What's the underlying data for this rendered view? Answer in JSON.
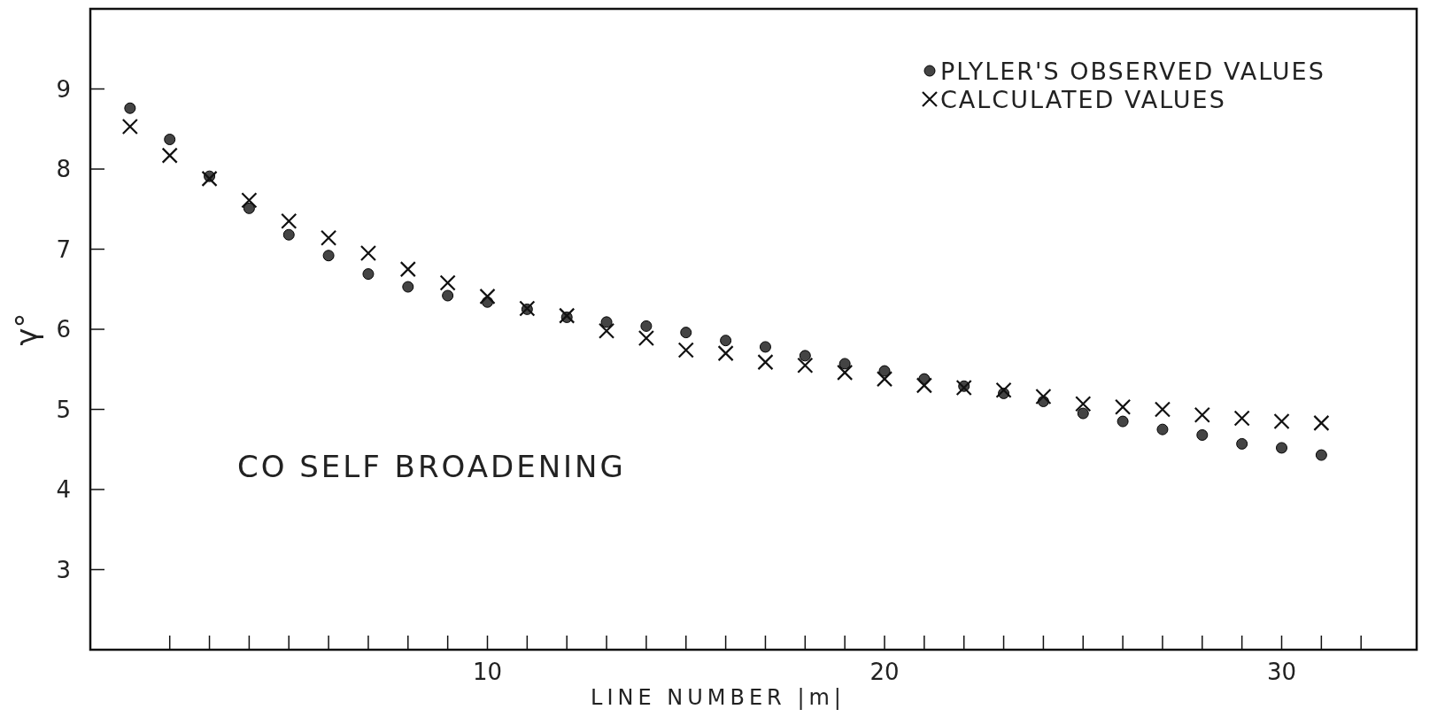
{
  "chart_data": {
    "type": "scatter",
    "xlabel": "LINE NUMBER |m|",
    "ylabel": "γ°",
    "annotations": [
      "CO SELF BROADENING"
    ],
    "x": [
      1,
      2,
      3,
      4,
      5,
      6,
      7,
      8,
      9,
      10,
      11,
      12,
      13,
      14,
      15,
      16,
      17,
      18,
      19,
      20,
      21,
      22,
      23,
      24,
      25,
      26,
      27,
      28,
      29,
      30,
      31
    ],
    "series": [
      {
        "name": "PLYLER'S OBSERVED VALUES",
        "color": "#444444",
        "marker": "circle",
        "values": [
          8.76,
          8.37,
          7.91,
          7.51,
          7.18,
          6.92,
          6.69,
          6.53,
          6.42,
          6.34,
          6.25,
          6.15,
          6.09,
          6.04,
          5.96,
          5.86,
          5.78,
          5.67,
          5.57,
          5.48,
          5.38,
          5.29,
          5.2,
          5.1,
          4.95,
          4.85,
          4.75,
          4.68,
          4.57,
          4.52,
          4.43
        ]
      },
      {
        "name": "CALCULATED VALUES",
        "color": "#111111",
        "marker": "cross",
        "values": [
          8.53,
          8.17,
          7.88,
          7.61,
          7.35,
          7.14,
          6.95,
          6.75,
          6.58,
          6.41,
          6.26,
          6.17,
          5.98,
          5.89,
          5.74,
          5.7,
          5.59,
          5.55,
          5.46,
          5.38,
          5.3,
          5.27,
          5.24,
          5.16,
          5.07,
          5.03,
          5,
          4.93,
          4.89,
          4.85,
          4.83
        ]
      }
    ],
    "xlim": [
      0,
      33.4
    ],
    "xticks": [
      {
        "value": 2,
        "label": null
      },
      {
        "value": 3,
        "label": null
      },
      {
        "value": 4,
        "label": null
      },
      {
        "value": 5,
        "label": null
      },
      {
        "value": 6,
        "label": null
      },
      {
        "value": 7,
        "label": null
      },
      {
        "value": 8,
        "label": null
      },
      {
        "value": 9,
        "label": null
      },
      10,
      {
        "value": 11,
        "label": null
      },
      {
        "value": 12,
        "label": null
      },
      {
        "value": 13,
        "label": null
      },
      {
        "value": 14,
        "label": null
      },
      {
        "value": 15,
        "label": null
      },
      {
        "value": 16,
        "label": null
      },
      {
        "value": 17,
        "label": null
      },
      {
        "value": 18,
        "label": null
      },
      {
        "value": 19,
        "label": null
      },
      20,
      {
        "value": 21,
        "label": null
      },
      {
        "value": 22,
        "label": null
      },
      {
        "value": 23,
        "label": null
      },
      {
        "value": 24,
        "label": null
      },
      {
        "value": 25,
        "label": null
      },
      {
        "value": 26,
        "label": null
      },
      {
        "value": 27,
        "label": null
      },
      {
        "value": 28,
        "label": null
      },
      {
        "value": 29,
        "label": null
      },
      30,
      {
        "value": 31,
        "label": null
      },
      {
        "value": 32,
        "label": null
      }
    ],
    "ylim": [
      2,
      10
    ],
    "yticks": [
      3,
      4,
      5,
      6,
      7,
      8,
      9
    ],
    "grid": false,
    "legend": "top right"
  }
}
